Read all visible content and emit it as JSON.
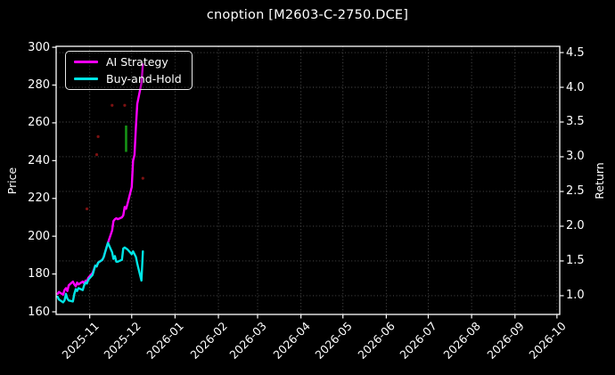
{
  "figure": {
    "title": "cnoption [M2603-C-2750.DCE]",
    "background_color": "#000000",
    "text_color": "#ffffff"
  },
  "legend": {
    "items": [
      {
        "label": "AI Strategy",
        "color": "#ff00ff"
      },
      {
        "label": "Buy-and-Hold",
        "color": "#00e5e5"
      }
    ]
  },
  "chart_data": {
    "type": "line",
    "title": "cnoption [M2603-C-2750.DCE]",
    "grid": "dotted",
    "legend_position": "upper left",
    "x_axis": {
      "range": [
        "2025-10-08",
        "2026-10-03"
      ],
      "tick_labels": [
        "2025-11",
        "2025-12",
        "2026-01",
        "2026-02",
        "2026-03",
        "2026-04",
        "2026-05",
        "2026-06",
        "2026-07",
        "2026-08",
        "2026-09",
        "2026-10"
      ]
    },
    "y_left": {
      "label": "Price",
      "range": [
        158.6,
        300.5
      ],
      "ticks": [
        "160",
        "180",
        "200",
        "220",
        "240",
        "260",
        "280",
        "300"
      ]
    },
    "y_right": {
      "label": "Return",
      "range": [
        0.73,
        4.59
      ],
      "ticks": [
        "1.0",
        "1.5",
        "2.0",
        "2.5",
        "3.0",
        "3.5",
        "4.0",
        "4.5"
      ]
    },
    "series": [
      {
        "name": "AI Strategy",
        "color": "#ff00ff",
        "axis": "left",
        "dates": [
          "2025-10-09",
          "2025-10-10",
          "2025-10-13",
          "2025-10-14",
          "2025-10-15",
          "2025-10-16",
          "2025-10-17",
          "2025-10-20",
          "2025-10-21",
          "2025-10-22",
          "2025-10-23",
          "2025-10-24",
          "2025-10-27",
          "2025-10-28",
          "2025-10-29",
          "2025-10-30",
          "2025-10-31",
          "2025-11-03",
          "2025-11-04",
          "2025-11-05",
          "2025-11-06",
          "2025-11-07",
          "2025-11-10",
          "2025-11-11",
          "2025-11-12",
          "2025-11-13",
          "2025-11-14",
          "2025-11-17",
          "2025-11-18",
          "2025-11-19",
          "2025-11-20",
          "2025-11-21",
          "2025-11-24",
          "2025-11-25",
          "2025-11-26",
          "2025-11-27",
          "2025-11-28",
          "2025-12-01",
          "2025-12-02",
          "2025-12-03",
          "2025-12-04",
          "2025-12-05",
          "2025-12-08",
          "2025-12-09"
        ],
        "values": [
          169.5,
          170.5,
          169,
          171.5,
          172.5,
          171,
          174,
          176,
          174.5,
          173.5,
          175.5,
          174.5,
          176,
          175,
          176.5,
          176,
          178,
          180.5,
          182.5,
          184.5,
          184,
          186,
          187.5,
          189,
          191.5,
          194,
          196.5,
          203,
          208,
          209,
          209.5,
          209,
          210,
          211,
          215.5,
          214.5,
          217,
          226,
          240,
          243,
          258,
          270,
          281,
          291
        ]
      },
      {
        "name": "Buy-and-Hold",
        "color": "#00e5e5",
        "axis": "left",
        "dates": [
          "2025-10-09",
          "2025-10-10",
          "2025-10-13",
          "2025-10-14",
          "2025-10-15",
          "2025-10-16",
          "2025-10-17",
          "2025-10-20",
          "2025-10-21",
          "2025-10-22",
          "2025-10-23",
          "2025-10-24",
          "2025-10-27",
          "2025-10-28",
          "2025-10-29",
          "2025-10-30",
          "2025-10-31",
          "2025-11-03",
          "2025-11-04",
          "2025-11-05",
          "2025-11-06",
          "2025-11-07",
          "2025-11-10",
          "2025-11-11",
          "2025-11-12",
          "2025-11-13",
          "2025-11-14",
          "2025-11-17",
          "2025-11-18",
          "2025-11-19",
          "2025-11-20",
          "2025-11-21",
          "2025-11-24",
          "2025-11-25",
          "2025-11-26",
          "2025-11-27",
          "2025-11-28",
          "2025-12-01",
          "2025-12-02",
          "2025-12-03",
          "2025-12-04",
          "2025-12-05",
          "2025-12-08",
          "2025-12-09"
        ],
        "values": [
          168,
          166.5,
          165,
          166,
          169.5,
          167,
          166,
          165.5,
          169.5,
          172,
          171,
          172.5,
          171.5,
          174,
          175.5,
          175,
          177,
          179.5,
          182,
          184.5,
          184,
          186,
          187.5,
          189,
          191.5,
          194,
          196.5,
          191.5,
          188,
          189.5,
          186.5,
          186.5,
          187.5,
          193.5,
          194,
          193.5,
          193,
          190.5,
          192,
          190.5,
          189,
          185.5,
          176.5,
          192
        ]
      }
    ],
    "markers": {
      "green_bar": {
        "date": "2025-11-27",
        "axis": "right",
        "from": 3.07,
        "to": 3.45,
        "color": "#169416"
      },
      "red_dots": {
        "color": "#8b1414",
        "axis": "right",
        "points": [
          {
            "date": "2025-10-30",
            "value": 2.25
          },
          {
            "date": "2025-11-06",
            "value": 3.03
          },
          {
            "date": "2025-11-07",
            "value": 3.29
          },
          {
            "date": "2025-11-17",
            "value": 3.74
          },
          {
            "date": "2025-11-26",
            "value": 3.74
          },
          {
            "date": "2025-12-09",
            "value": 2.69
          }
        ]
      }
    }
  }
}
